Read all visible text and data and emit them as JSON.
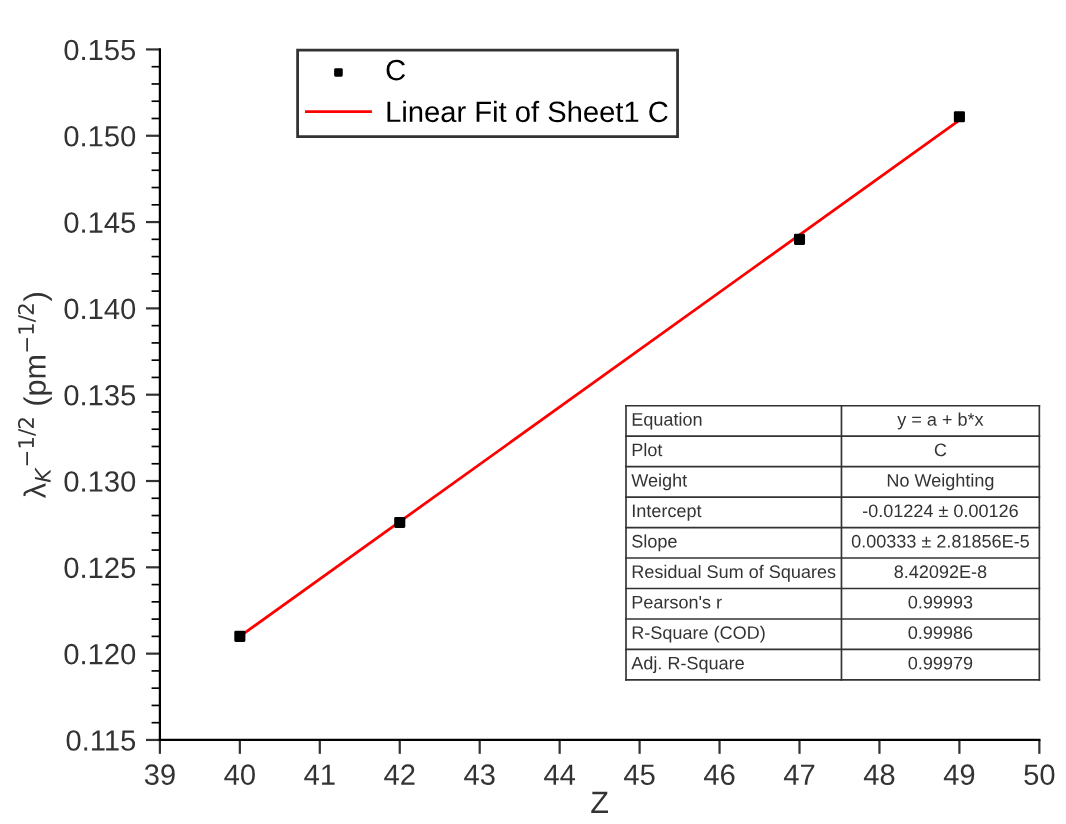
{
  "chart_data": {
    "type": "scatter",
    "xlabel": "Z",
    "ylabel": "λ$_{K}$$^{−1/2}$ (pm$^{−1/2}$)",
    "series": [
      {
        "name": "C",
        "type": "scatter",
        "color": "#000000",
        "marker": "square",
        "x": [
          40,
          42,
          47,
          49
        ],
        "values": [
          0.121,
          0.1276,
          0.144,
          0.1511
        ]
      },
      {
        "name": "Linear Fit of Sheet1 C",
        "type": "line",
        "color": "#ff0000",
        "marker": "none",
        "line_style": "solid",
        "x": [
          40,
          49
        ],
        "values": [
          0.121,
          0.1509
        ]
      }
    ],
    "xlim": [
      39,
      50
    ],
    "xticks": [
      39,
      40,
      41,
      42,
      43,
      44,
      45,
      46,
      47,
      48,
      49,
      50
    ],
    "ylim": [
      0.115,
      0.155
    ],
    "yticks": [
      {
        "value": 0.115,
        "label": "0.115"
      },
      {
        "value": 0.12,
        "label": "0.120"
      },
      {
        "value": 0.125,
        "label": "0.125"
      },
      {
        "value": 0.13,
        "label": "0.130"
      },
      {
        "value": 0.135,
        "label": "0.135"
      },
      {
        "value": 0.14,
        "label": "0.140"
      },
      {
        "value": 0.145,
        "label": "0.145"
      },
      {
        "value": 0.15,
        "label": "0.150"
      },
      {
        "value": 0.155,
        "label": "0.155"
      }
    ],
    "grid": false,
    "legend": "top left",
    "annotations": [
      "Equation",
      "y = a + b*x",
      "Plot",
      "C",
      "Weight",
      "No Weighting",
      "Intercept",
      "-0.01224 ± 0.00126",
      "Slope",
      "0.00333 ± 2.81856E-5",
      "Residual Sum of Squares",
      "8.42092E-8",
      "Pearson's r",
      "0.99993",
      "R-Square (COD)",
      "0.99986",
      "Adj. R-Square",
      "0.99979"
    ]
  }
}
